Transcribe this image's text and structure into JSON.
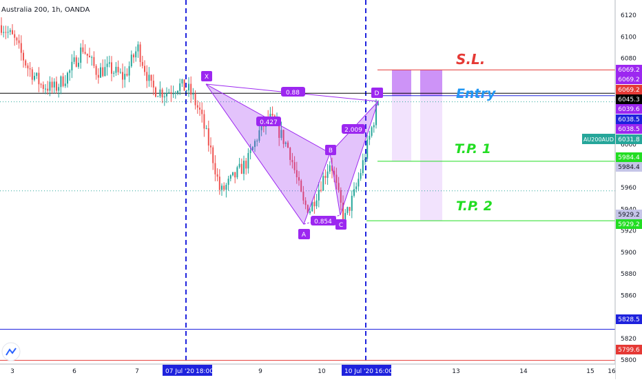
{
  "symbol_title": "Australia 200, 1h, OANDA",
  "chart_data": {
    "type": "candlestick",
    "symbol": "Australia 200, 1h, OANDA",
    "y_ticks": [
      6120,
      6100,
      6080,
      6060,
      6040,
      6020,
      6000,
      5980,
      5960,
      5940,
      5920,
      5900,
      5880,
      5860,
      5840,
      5820,
      5800
    ],
    "x_ticks": [
      "3",
      "6",
      "7",
      "9",
      "10",
      "13",
      "14",
      "15",
      "16"
    ],
    "x_highlight_labels": [
      "07 Jul '20",
      "18:00",
      "10 Jul '20",
      "16:00"
    ],
    "harmonic_points": {
      "X": {
        "label": "X",
        "price": 6057
      },
      "A": {
        "label": "A",
        "price": 5918
      },
      "B": {
        "label": "B",
        "price": 5980
      },
      "C": {
        "label": "C",
        "price": 5926
      },
      "D": {
        "label": "D",
        "price": 6047
      }
    },
    "ratios": [
      "0.88",
      "0.427",
      "0.854",
      "2.009"
    ],
    "levels": [
      {
        "name": "S.L.",
        "price": 6069.2,
        "color": "#e53935"
      },
      {
        "name": "Entry",
        "price": 6045.3,
        "color": "#2196f3"
      },
      {
        "name": "T.P. 1",
        "price": 5984.4,
        "color": "#22dd22"
      },
      {
        "name": "T.P. 2",
        "price": 5929.2,
        "color": "#22dd22"
      }
    ],
    "horizontal_lines": [
      {
        "price": 6047.5,
        "color": "#000000"
      },
      {
        "price": 5828.5,
        "color": "#1e22dd"
      },
      {
        "price": 5799.6,
        "color": "#e53935"
      }
    ],
    "price_labels": [
      {
        "text": "6069.2",
        "color": "#9c27f0"
      },
      {
        "text": "6069.2",
        "color": "#9c27f0"
      },
      {
        "text": "6069.2",
        "color": "#e53935"
      },
      {
        "text": "6045.3",
        "color": "#000000"
      },
      {
        "text": "6039.6",
        "color": "#9c27f0"
      },
      {
        "text": "6038.5",
        "color": "#1e22dd"
      },
      {
        "text": "6038.5",
        "color": "#9c27f0"
      },
      {
        "text": "6031.8",
        "color": "#26a69a"
      },
      {
        "text": "5984.4",
        "color": "#22dd22"
      },
      {
        "text": "5984.4",
        "color": "#c5c5e8"
      },
      {
        "text": "5929.2",
        "color": "#c5c5e8"
      },
      {
        "text": "5929.2",
        "color": "#22dd22"
      },
      {
        "text": "5828.5",
        "color": "#1e22dd"
      },
      {
        "text": "5799.6",
        "color": "#e53935"
      }
    ],
    "symbol_tag": "AU200AUD",
    "colors": {
      "up": "#26a69a",
      "down": "#ef5350",
      "pattern": "#9c27f0"
    }
  }
}
